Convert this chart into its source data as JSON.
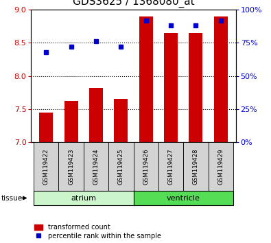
{
  "title": "GDS3625 / 1368080_at",
  "samples": [
    "GSM119422",
    "GSM119423",
    "GSM119424",
    "GSM119425",
    "GSM119426",
    "GSM119427",
    "GSM119428",
    "GSM119429"
  ],
  "red_values": [
    7.45,
    7.62,
    7.82,
    7.65,
    8.9,
    8.65,
    8.65,
    8.9
  ],
  "blue_values": [
    68,
    72,
    76,
    72,
    92,
    88,
    88,
    92
  ],
  "ylim_left": [
    7,
    9
  ],
  "ylim_right": [
    0,
    100
  ],
  "yticks_left": [
    7,
    7.5,
    8,
    8.5,
    9
  ],
  "yticks_right": [
    0,
    25,
    50,
    75,
    100
  ],
  "ytick_labels_right": [
    "0%",
    "25%",
    "50%",
    "75%",
    "100%"
  ],
  "bar_color": "#cc0000",
  "dot_color": "#0000cc",
  "bar_bottom": 7.0,
  "groups": [
    {
      "label": "atrium",
      "start": 0,
      "end": 4,
      "color": "#ccf5cc"
    },
    {
      "label": "ventricle",
      "start": 4,
      "end": 8,
      "color": "#55dd55"
    }
  ],
  "tissue_label": "tissue",
  "legend_red": "transformed count",
  "legend_blue": "percentile rank within the sample",
  "grid_dotted_at": [
    7.5,
    8.0,
    8.5
  ],
  "label_area_color": "#d3d3d3",
  "background_color": "#ffffff",
  "title_fontsize": 11,
  "tick_fontsize": 8,
  "bar_width": 0.55,
  "n_samples": 8
}
